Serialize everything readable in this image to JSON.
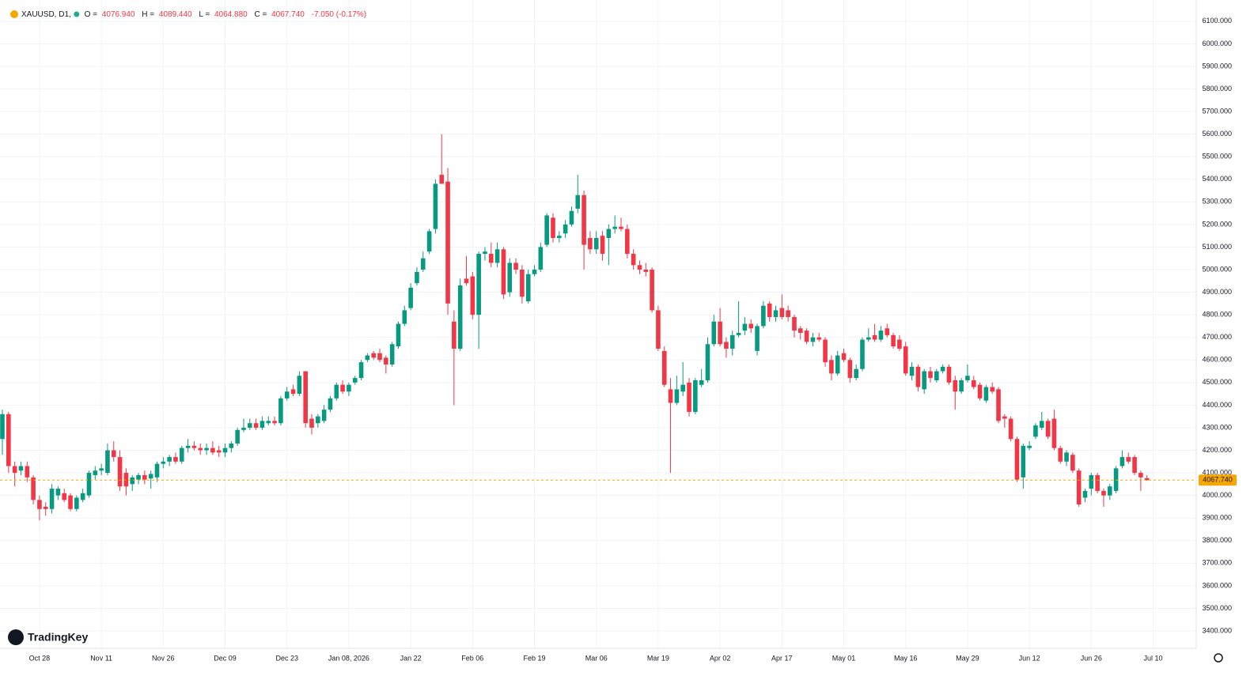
{
  "header": {
    "symbol": "XAUUSD, D1,",
    "open_label": "O =",
    "open": "4076.940",
    "high_label": "H =",
    "high": "4089.440",
    "low_label": "L =",
    "low": "4064.880",
    "close_label": "C =",
    "close": "4067.740",
    "change": "-7.050 (-0.17%)"
  },
  "brand": "TradingKey",
  "chart_data": {
    "type": "candlestick",
    "up_color": "#089981",
    "down_color": "#f23645",
    "grid": true,
    "last_price_color": "#f7a600",
    "ylim": [
      3323,
      6194
    ],
    "yticks": [
      {
        "value": 3400,
        "label": "3400.000"
      },
      {
        "value": 3500,
        "label": "3500.000"
      },
      {
        "value": 3600,
        "label": "3600.000"
      },
      {
        "value": 3700,
        "label": "3700.000"
      },
      {
        "value": 3800,
        "label": "3800.000"
      },
      {
        "value": 3900,
        "label": "3900.000"
      },
      {
        "value": 4000,
        "label": "4000.000"
      },
      {
        "value": 4100,
        "label": "4100.000"
      },
      {
        "value": 4200,
        "label": "4200.000"
      },
      {
        "value": 4300,
        "label": "4300.000"
      },
      {
        "value": 4400,
        "label": "4400.000"
      },
      {
        "value": 4500,
        "label": "4500.000"
      },
      {
        "value": 4600,
        "label": "4600.000"
      },
      {
        "value": 4700,
        "label": "4700.000"
      },
      {
        "value": 4800,
        "label": "4800.000"
      },
      {
        "value": 4900,
        "label": "4900.000"
      },
      {
        "value": 5000,
        "label": "5000.000"
      },
      {
        "value": 5100,
        "label": "5100.000"
      },
      {
        "value": 5200,
        "label": "5200.000"
      },
      {
        "value": 5300,
        "label": "5300.000"
      },
      {
        "value": 5400,
        "label": "5400.000"
      },
      {
        "value": 5500,
        "label": "5500.000"
      },
      {
        "value": 5600,
        "label": "5600.000"
      },
      {
        "value": 5700,
        "label": "5700.000"
      },
      {
        "value": 5800,
        "label": "5800.000"
      },
      {
        "value": 5900,
        "label": "5900.000"
      },
      {
        "value": 6000,
        "label": "6000.000"
      },
      {
        "value": 6100,
        "label": "6100.000"
      }
    ],
    "xticks": [
      {
        "value": 6,
        "label": "Oct 28"
      },
      {
        "value": 16,
        "label": "Nov 11"
      },
      {
        "value": 26,
        "label": "Nov 26"
      },
      {
        "value": 36,
        "label": "Dec 09"
      },
      {
        "value": 46,
        "label": "Dec 23"
      },
      {
        "value": 56,
        "label": "Jan 08, 2026"
      },
      {
        "value": 66,
        "label": "Jan 22"
      },
      {
        "value": 76,
        "label": "Feb 06"
      },
      {
        "value": 86,
        "label": "Feb 19"
      },
      {
        "value": 96,
        "label": "Mar 06"
      },
      {
        "value": 106,
        "label": "Mar 19"
      },
      {
        "value": 116,
        "label": "Apr 02"
      },
      {
        "value": 126,
        "label": "Apr 17"
      },
      {
        "value": 136,
        "label": "May 01"
      },
      {
        "value": 146,
        "label": "May 16"
      },
      {
        "value": 156,
        "label": "May 29"
      },
      {
        "value": 166,
        "label": "Jun 12"
      },
      {
        "value": 176,
        "label": "Jun 26"
      },
      {
        "value": 186,
        "label": "Jul 10"
      }
    ],
    "candles": [
      [
        4250,
        4380,
        4180,
        4360
      ],
      [
        4360,
        4370,
        4100,
        4130
      ],
      [
        4130,
        4150,
        4040,
        4100
      ],
      [
        4110,
        4150,
        4090,
        4130
      ],
      [
        4130,
        4150,
        4060,
        4080
      ],
      [
        4080,
        4090,
        3960,
        3980
      ],
      [
        3980,
        4000,
        3890,
        3940
      ],
      [
        3950,
        3970,
        3910,
        3940
      ],
      [
        3940,
        4050,
        3920,
        4030
      ],
      [
        4000,
        4040,
        3980,
        4030
      ],
      [
        4010,
        4030,
        3970,
        3980
      ],
      [
        4000,
        4010,
        3930,
        3940
      ],
      [
        3940,
        4000,
        3930,
        3990
      ],
      [
        3980,
        4030,
        3970,
        4010
      ],
      [
        4000,
        4110,
        3990,
        4100
      ],
      [
        4090,
        4130,
        4070,
        4110
      ],
      [
        4110,
        4140,
        4090,
        4120
      ],
      [
        4100,
        4230,
        4090,
        4200
      ],
      [
        4200,
        4240,
        4150,
        4170
      ],
      [
        4170,
        4200,
        4020,
        4040
      ],
      [
        4100,
        4120,
        4000,
        4040
      ],
      [
        4050,
        4090,
        4020,
        4080
      ],
      [
        4070,
        4100,
        4050,
        4090
      ],
      [
        4090,
        4110,
        4050,
        4070
      ],
      [
        4075,
        4110,
        4030,
        4095
      ],
      [
        4080,
        4150,
        4060,
        4140
      ],
      [
        4140,
        4170,
        4120,
        4150
      ],
      [
        4150,
        4180,
        4130,
        4170
      ],
      [
        4170,
        4190,
        4140,
        4150
      ],
      [
        4150,
        4220,
        4140,
        4210
      ],
      [
        4210,
        4250,
        4190,
        4220
      ],
      [
        4220,
        4240,
        4200,
        4210
      ],
      [
        4210,
        4230,
        4180,
        4200
      ],
      [
        4200,
        4230,
        4180,
        4210
      ],
      [
        4210,
        4240,
        4180,
        4190
      ],
      [
        4200,
        4220,
        4170,
        4190
      ],
      [
        4190,
        4230,
        4170,
        4210
      ],
      [
        4210,
        4240,
        4190,
        4230
      ],
      [
        4230,
        4300,
        4220,
        4290
      ],
      [
        4290,
        4340,
        4280,
        4300
      ],
      [
        4300,
        4340,
        4290,
        4320
      ],
      [
        4320,
        4340,
        4290,
        4300
      ],
      [
        4300,
        4350,
        4290,
        4330
      ],
      [
        4320,
        4350,
        4310,
        4330
      ],
      [
        4330,
        4350,
        4310,
        4320
      ],
      [
        4320,
        4440,
        4310,
        4430
      ],
      [
        4430,
        4480,
        4420,
        4460
      ],
      [
        4470,
        4490,
        4440,
        4450
      ],
      [
        4450,
        4550,
        4440,
        4530
      ],
      [
        4550,
        4550,
        4300,
        4320
      ],
      [
        4340,
        4360,
        4270,
        4300
      ],
      [
        4320,
        4360,
        4300,
        4350
      ],
      [
        4330,
        4400,
        4320,
        4380
      ],
      [
        4380,
        4440,
        4370,
        4430
      ],
      [
        4430,
        4500,
        4420,
        4490
      ],
      [
        4490,
        4510,
        4450,
        4460
      ],
      [
        4460,
        4500,
        4440,
        4490
      ],
      [
        4500,
        4530,
        4490,
        4520
      ],
      [
        4520,
        4600,
        4510,
        4590
      ],
      [
        4600,
        4630,
        4590,
        4620
      ],
      [
        4630,
        4640,
        4600,
        4610
      ],
      [
        4630,
        4650,
        4590,
        4600
      ],
      [
        4610,
        4620,
        4540,
        4580
      ],
      [
        4580,
        4680,
        4570,
        4670
      ],
      [
        4660,
        4770,
        4650,
        4760
      ],
      [
        4760,
        4840,
        4750,
        4820
      ],
      [
        4830,
        4940,
        4820,
        4920
      ],
      [
        4940,
        5010,
        4930,
        4990
      ],
      [
        5000,
        5080,
        4990,
        5050
      ],
      [
        5080,
        5180,
        5070,
        5170
      ],
      [
        5180,
        5400,
        5160,
        5380
      ],
      [
        5420,
        5600,
        5380,
        5380
      ],
      [
        5390,
        5450,
        4800,
        4850
      ],
      [
        4770,
        4820,
        4400,
        4650
      ],
      [
        4650,
        4960,
        4640,
        4930
      ],
      [
        4960,
        5060,
        4930,
        4940
      ],
      [
        4970,
        4990,
        4780,
        4800
      ],
      [
        4800,
        5080,
        4650,
        5070
      ],
      [
        5070,
        5100,
        5040,
        5080
      ],
      [
        5070,
        5120,
        5010,
        5030
      ],
      [
        5030,
        5120,
        5010,
        5090
      ],
      [
        5090,
        5100,
        4870,
        4890
      ],
      [
        4900,
        5050,
        4880,
        5030
      ],
      [
        5030,
        5050,
        4980,
        5000
      ],
      [
        5000,
        5020,
        4850,
        4880
      ],
      [
        4860,
        5000,
        4850,
        4980
      ],
      [
        4980,
        5020,
        4970,
        5000
      ],
      [
        5000,
        5120,
        4990,
        5100
      ],
      [
        5110,
        5250,
        5100,
        5240
      ],
      [
        5230,
        5250,
        5120,
        5140
      ],
      [
        5140,
        5170,
        5120,
        5150
      ],
      [
        5160,
        5220,
        5140,
        5200
      ],
      [
        5200,
        5280,
        5190,
        5260
      ],
      [
        5270,
        5420,
        5250,
        5330
      ],
      [
        5330,
        5350,
        5000,
        5110
      ],
      [
        5140,
        5170,
        5070,
        5090
      ],
      [
        5090,
        5170,
        5070,
        5140
      ],
      [
        5150,
        5170,
        5040,
        5070
      ],
      [
        5140,
        5200,
        5020,
        5180
      ],
      [
        5180,
        5240,
        5160,
        5190
      ],
      [
        5190,
        5230,
        5170,
        5180
      ],
      [
        5180,
        5200,
        5050,
        5070
      ],
      [
        5070,
        5090,
        5000,
        5020
      ],
      [
        5020,
        5040,
        4980,
        5000
      ],
      [
        5000,
        5030,
        4970,
        4990
      ],
      [
        5000,
        5010,
        4810,
        4820
      ],
      [
        4820,
        4840,
        4640,
        4650
      ],
      [
        4640,
        4660,
        4480,
        4490
      ],
      [
        4470,
        4520,
        4100,
        4410
      ],
      [
        4410,
        4530,
        4400,
        4470
      ],
      [
        4460,
        4590,
        4440,
        4490
      ],
      [
        4500,
        4520,
        4350,
        4370
      ],
      [
        4370,
        4520,
        4360,
        4510
      ],
      [
        4490,
        4560,
        4480,
        4510
      ],
      [
        4510,
        4700,
        4500,
        4670
      ],
      [
        4670,
        4800,
        4660,
        4770
      ],
      [
        4770,
        4830,
        4660,
        4670
      ],
      [
        4680,
        4700,
        4610,
        4650
      ],
      [
        4650,
        4730,
        4620,
        4710
      ],
      [
        4710,
        4860,
        4700,
        4720
      ],
      [
        4730,
        4790,
        4710,
        4760
      ],
      [
        4760,
        4780,
        4720,
        4740
      ],
      [
        4640,
        4760,
        4620,
        4750
      ],
      [
        4750,
        4860,
        4740,
        4840
      ],
      [
        4850,
        4860,
        4770,
        4790
      ],
      [
        4790,
        4840,
        4770,
        4820
      ],
      [
        4830,
        4890,
        4780,
        4790
      ],
      [
        4820,
        4840,
        4770,
        4790
      ],
      [
        4790,
        4800,
        4700,
        4730
      ],
      [
        4740,
        4750,
        4690,
        4720
      ],
      [
        4730,
        4740,
        4670,
        4680
      ],
      [
        4680,
        4720,
        4660,
        4700
      ],
      [
        4700,
        4720,
        4680,
        4690
      ],
      [
        4690,
        4700,
        4570,
        4590
      ],
      [
        4600,
        4620,
        4510,
        4540
      ],
      [
        4540,
        4640,
        4530,
        4620
      ],
      [
        4630,
        4650,
        4590,
        4600
      ],
      [
        4600,
        4610,
        4500,
        4520
      ],
      [
        4520,
        4580,
        4510,
        4560
      ],
      [
        4560,
        4700,
        4550,
        4690
      ],
      [
        4690,
        4740,
        4680,
        4700
      ],
      [
        4710,
        4760,
        4680,
        4690
      ],
      [
        4690,
        4750,
        4680,
        4730
      ],
      [
        4740,
        4760,
        4700,
        4710
      ],
      [
        4710,
        4720,
        4650,
        4660
      ],
      [
        4690,
        4710,
        4640,
        4650
      ],
      [
        4660,
        4680,
        4530,
        4540
      ],
      [
        4530,
        4590,
        4510,
        4570
      ],
      [
        4570,
        4580,
        4460,
        4480
      ],
      [
        4470,
        4560,
        4450,
        4550
      ],
      [
        4550,
        4570,
        4500,
        4520
      ],
      [
        4510,
        4560,
        4500,
        4550
      ],
      [
        4550,
        4580,
        4540,
        4570
      ],
      [
        4570,
        4580,
        4490,
        4500
      ],
      [
        4510,
        4530,
        4380,
        4460
      ],
      [
        4460,
        4520,
        4450,
        4510
      ],
      [
        4510,
        4580,
        4500,
        4530
      ],
      [
        4510,
        4530,
        4470,
        4480
      ],
      [
        4490,
        4500,
        4420,
        4430
      ],
      [
        4420,
        4490,
        4410,
        4480
      ],
      [
        4480,
        4500,
        4450,
        4460
      ],
      [
        4470,
        4480,
        4320,
        4330
      ],
      [
        4350,
        4360,
        4300,
        4340
      ],
      [
        4340,
        4350,
        4240,
        4250
      ],
      [
        4250,
        4260,
        4060,
        4070
      ],
      [
        4080,
        4230,
        4030,
        4220
      ],
      [
        4210,
        4240,
        4200,
        4220
      ],
      [
        4260,
        4320,
        4250,
        4310
      ],
      [
        4300,
        4370,
        4290,
        4330
      ],
      [
        4330,
        4340,
        4250,
        4260
      ],
      [
        4340,
        4380,
        4200,
        4210
      ],
      [
        4210,
        4220,
        4140,
        4150
      ],
      [
        4150,
        4200,
        4130,
        4190
      ],
      [
        4180,
        4190,
        4100,
        4110
      ],
      [
        4110,
        4120,
        3950,
        3960
      ],
      [
        3990,
        4030,
        3970,
        4020
      ],
      [
        4030,
        4100,
        4000,
        4090
      ],
      [
        4090,
        4100,
        4010,
        4020
      ],
      [
        4020,
        4030,
        3950,
        4000
      ],
      [
        4000,
        4050,
        3980,
        4040
      ],
      [
        4020,
        4130,
        4010,
        4120
      ],
      [
        4130,
        4200,
        4120,
        4170
      ],
      [
        4170,
        4190,
        4140,
        4150
      ],
      [
        4170,
        4180,
        4090,
        4100
      ],
      [
        4100,
        4110,
        4020,
        4080
      ],
      [
        4076.94,
        4089.44,
        4064.88,
        4067.74
      ]
    ]
  }
}
